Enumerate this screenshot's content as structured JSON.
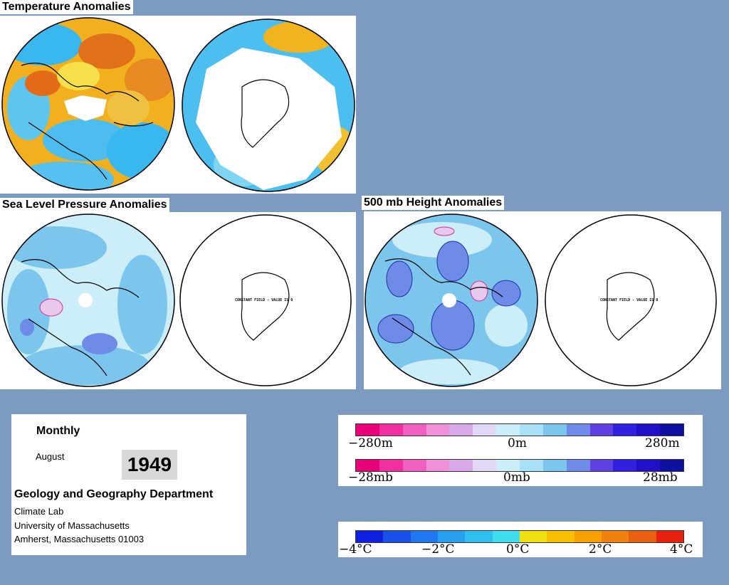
{
  "sections": {
    "temperature": "Temperature Anomalies",
    "slp": "Sea Level Pressure Anomalies",
    "height": "500 mb Height Anomalies"
  },
  "maps": {
    "constant_field_text": "CONSTANT FIELD - VALUE IS 0"
  },
  "info": {
    "period": "Monthly",
    "month": "August",
    "year": "1949",
    "department": "Geology and Geography Department",
    "lab": "Climate Lab",
    "university": "University of Massachusetts",
    "address": "Amherst, Massachusetts 01003"
  },
  "scales": {
    "height": {
      "min": "−280m",
      "mid": "0m",
      "max": "280m"
    },
    "pressure": {
      "min": "−28mb",
      "mid": "0mb",
      "max": "28mb"
    },
    "temperature": {
      "t1": "−4°C",
      "t2": "−2°C",
      "t3": "0°C",
      "t4": "2°C",
      "t5": "4°C"
    }
  },
  "colors": {
    "background": "#7d9bc1",
    "warm": "#f0a020",
    "cool": "#38b4f0",
    "slp_fill": "#7cc6ee"
  }
}
